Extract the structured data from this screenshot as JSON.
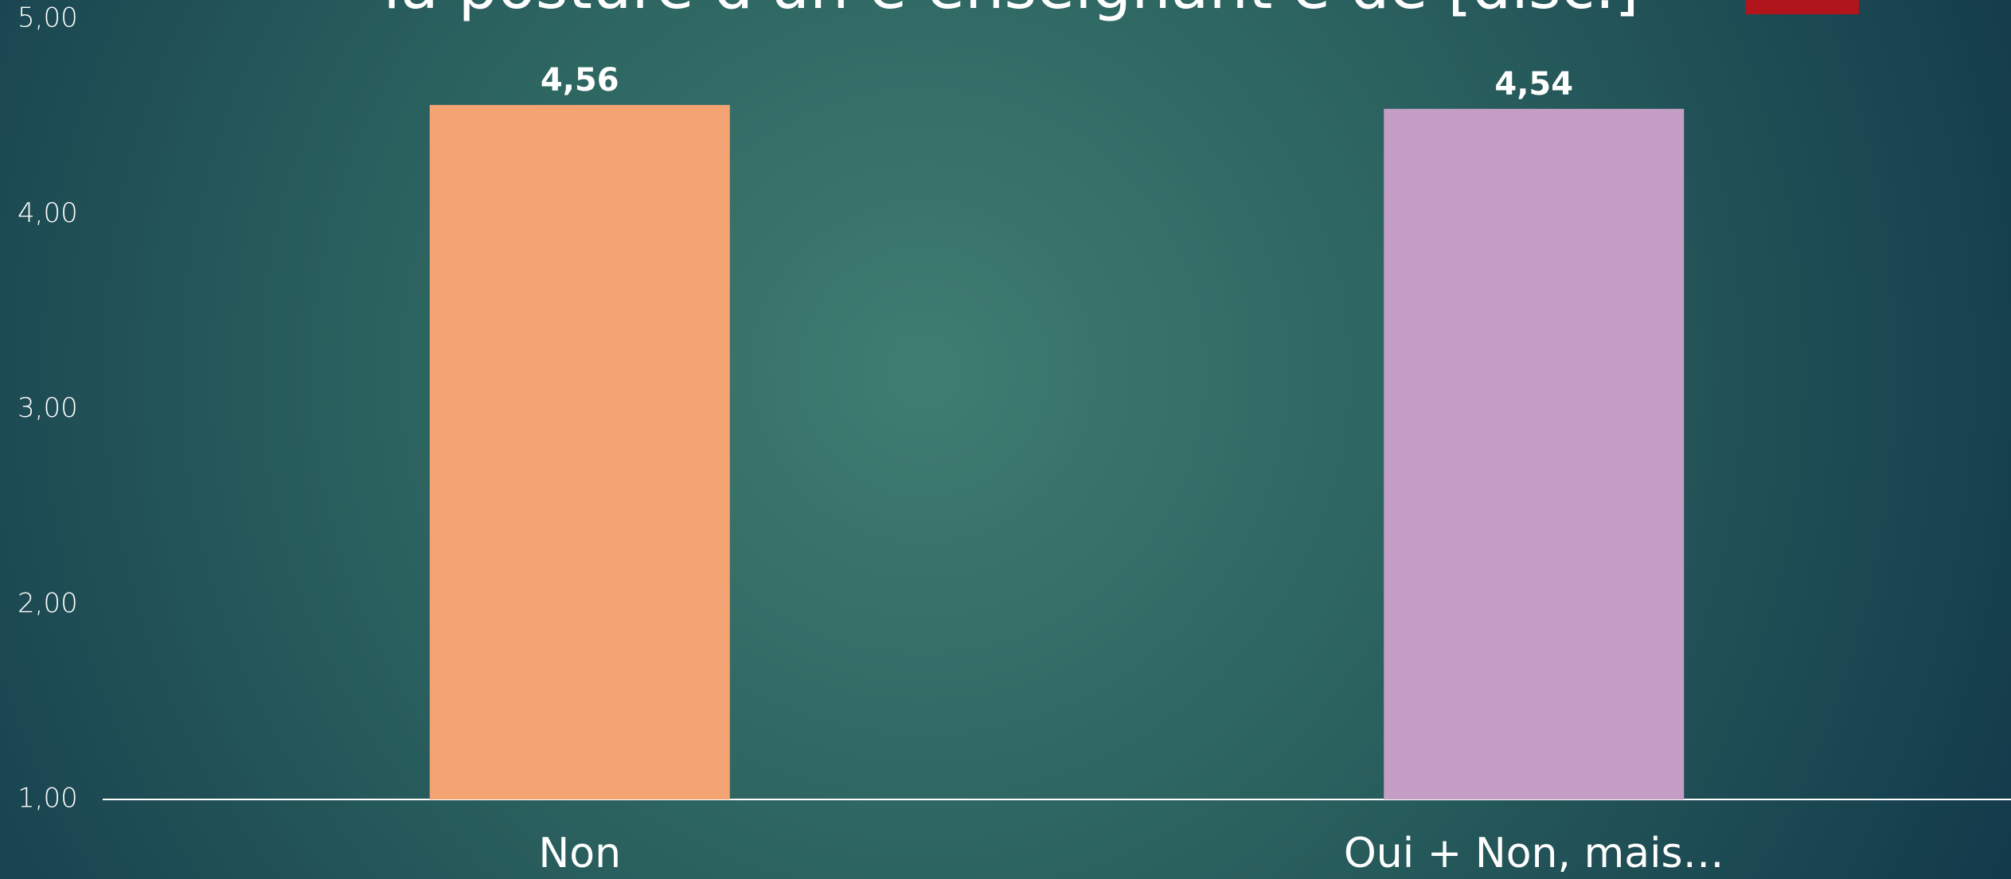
{
  "chart_data": {
    "type": "bar",
    "title": "la posture d'un·e enseignant·e de [disc.]",
    "categories": [
      "Non",
      "Oui + Non, mais…"
    ],
    "values": [
      4.56,
      4.54
    ],
    "value_labels": [
      "4,56",
      "4,54"
    ],
    "colors": [
      "#f4a373",
      "#c49ec4"
    ],
    "ylim": [
      1,
      5
    ],
    "yticks": [
      {
        "value": 1,
        "label": "1,00"
      },
      {
        "value": 2,
        "label": "2,00"
      },
      {
        "value": 3,
        "label": "3,00"
      },
      {
        "value": 4,
        "label": "4,00"
      },
      {
        "value": 5,
        "label": "5,00"
      }
    ],
    "grid": false
  }
}
